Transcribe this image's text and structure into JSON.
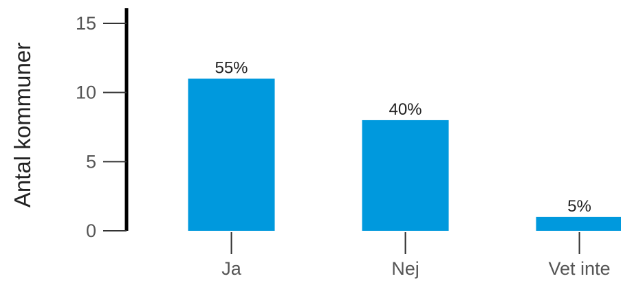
{
  "chart_data": {
    "type": "bar",
    "categories": [
      "Ja",
      "Nej",
      "Vet inte"
    ],
    "values": [
      11,
      8,
      1
    ],
    "data_labels": [
      "55%",
      "40%",
      "5%"
    ],
    "ylabel": "Antal kommuner",
    "xlabel": "",
    "ylim": [
      0,
      15
    ],
    "yticks": [
      "0",
      "5",
      "10",
      "15"
    ],
    "bar_color": "#0099DD",
    "grid": false
  }
}
